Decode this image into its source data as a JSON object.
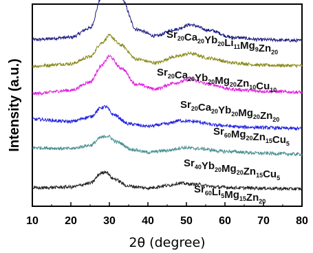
{
  "chart_data": {
    "type": "line",
    "xlabel": "2θ (degree)",
    "ylabel": "Intensity (a.u.)",
    "xlim": [
      10,
      80
    ],
    "x_ticks": [
      "10",
      "20",
      "30",
      "40",
      "50",
      "60",
      "70",
      "80"
    ],
    "y_ticks_shown": false,
    "grid": false,
    "legend": "inline labels above each curve",
    "series": [
      {
        "name_parts": [
          [
            "Sr",
            "20"
          ],
          [
            "Ca",
            "20"
          ],
          [
            "Yb",
            "20"
          ],
          [
            "Li",
            "11"
          ],
          [
            "Mg",
            "9"
          ],
          [
            "Zn",
            "20"
          ]
        ],
        "color": "#1a1a80",
        "points": [
          [
            10,
            0.4
          ],
          [
            20,
            0.45
          ],
          [
            25,
            0.65
          ],
          [
            28,
            1.3
          ],
          [
            30.5,
            1.7
          ],
          [
            33,
            1.3
          ],
          [
            37,
            0.62
          ],
          [
            42,
            0.48
          ],
          [
            47,
            0.62
          ],
          [
            51,
            0.72
          ],
          [
            56,
            0.6
          ],
          [
            62,
            0.45
          ],
          [
            70,
            0.4
          ],
          [
            80,
            0.38
          ]
        ]
      },
      {
        "name_parts": [
          [
            "Sr",
            "20"
          ],
          [
            "Ca",
            "20"
          ],
          [
            "Yb",
            "20"
          ],
          [
            "Mg",
            "20"
          ],
          [
            "Zn",
            "10"
          ],
          [
            "Cu",
            "10"
          ]
        ],
        "color": "#8a8a1a",
        "points": [
          [
            10,
            0.35
          ],
          [
            20,
            0.4
          ],
          [
            25,
            0.55
          ],
          [
            28,
            0.85
          ],
          [
            30,
            1.0
          ],
          [
            33,
            0.8
          ],
          [
            37,
            0.5
          ],
          [
            42,
            0.42
          ],
          [
            47,
            0.55
          ],
          [
            51,
            0.62
          ],
          [
            56,
            0.52
          ],
          [
            62,
            0.42
          ],
          [
            70,
            0.37
          ],
          [
            80,
            0.36
          ]
        ]
      },
      {
        "name_parts": [
          [
            "Sr",
            "20"
          ],
          [
            "Ca",
            "20"
          ],
          [
            "Yb",
            "20"
          ],
          [
            "Mg",
            "20"
          ],
          [
            "Zn",
            "20"
          ]
        ],
        "color": "#e020e0",
        "points": [
          [
            10,
            0.35
          ],
          [
            20,
            0.42
          ],
          [
            25,
            0.6
          ],
          [
            28,
            0.95
          ],
          [
            30,
            1.15
          ],
          [
            33,
            0.9
          ],
          [
            37,
            0.55
          ],
          [
            42,
            0.45
          ],
          [
            47,
            0.58
          ],
          [
            51,
            0.65
          ],
          [
            56,
            0.55
          ],
          [
            62,
            0.44
          ],
          [
            70,
            0.4
          ],
          [
            80,
            0.38
          ]
        ]
      },
      {
        "name_parts": [
          [
            "Sr",
            "60"
          ],
          [
            "Mg",
            "20"
          ],
          [
            "Zn",
            "15"
          ],
          [
            "Cu",
            "5"
          ]
        ],
        "color": "#2020e0",
        "points": [
          [
            10,
            0.45
          ],
          [
            20,
            0.4
          ],
          [
            25,
            0.5
          ],
          [
            28,
            0.7
          ],
          [
            29,
            0.72
          ],
          [
            31,
            0.55
          ],
          [
            35,
            0.35
          ],
          [
            40,
            0.3
          ],
          [
            45,
            0.35
          ],
          [
            48,
            0.42
          ],
          [
            52,
            0.4
          ],
          [
            58,
            0.32
          ],
          [
            65,
            0.28
          ],
          [
            80,
            0.25
          ]
        ]
      },
      {
        "name_parts": [
          [
            "Sr",
            "40"
          ],
          [
            "Yb",
            "20"
          ],
          [
            "Mg",
            "20"
          ],
          [
            "Zn",
            "15"
          ],
          [
            "Cu",
            "5"
          ]
        ],
        "color": "#4a9090",
        "points": [
          [
            10,
            0.4
          ],
          [
            20,
            0.38
          ],
          [
            25,
            0.45
          ],
          [
            28,
            0.62
          ],
          [
            29.5,
            0.65
          ],
          [
            32,
            0.52
          ],
          [
            36,
            0.36
          ],
          [
            40,
            0.3
          ],
          [
            45,
            0.34
          ],
          [
            49,
            0.4
          ],
          [
            53,
            0.38
          ],
          [
            60,
            0.32
          ],
          [
            70,
            0.28
          ],
          [
            80,
            0.26
          ]
        ]
      },
      {
        "name_parts": [
          [
            "Sr",
            "60"
          ],
          [
            "Li",
            "5"
          ],
          [
            "Mg",
            "15"
          ],
          [
            "Zn",
            "20"
          ]
        ],
        "color": "#222222",
        "points": [
          [
            10,
            0.2
          ],
          [
            20,
            0.22
          ],
          [
            25,
            0.3
          ],
          [
            28,
            0.52
          ],
          [
            29,
            0.55
          ],
          [
            31,
            0.4
          ],
          [
            35,
            0.24
          ],
          [
            40,
            0.2
          ],
          [
            45,
            0.25
          ],
          [
            48,
            0.3
          ],
          [
            52,
            0.28
          ],
          [
            58,
            0.22
          ],
          [
            65,
            0.2
          ],
          [
            80,
            0.18
          ]
        ]
      }
    ]
  }
}
